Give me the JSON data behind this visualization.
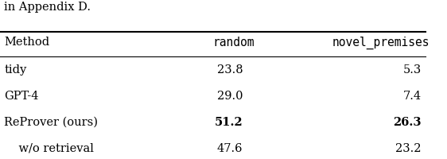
{
  "caption_text": "in Appendix D.",
  "col_headers": [
    "Method",
    "random",
    "novel_premises"
  ],
  "rows": [
    {
      "method": "tidy",
      "random": "23.8",
      "novel_premises": "5.3",
      "bold_random": false,
      "bold_novel": false,
      "indent": false
    },
    {
      "method": "GPT-4",
      "random": "29.0",
      "novel_premises": "7.4",
      "bold_random": false,
      "bold_novel": false,
      "indent": false
    },
    {
      "method": "ReProver (ours)",
      "random": "51.2",
      "novel_premises": "26.3",
      "bold_random": true,
      "bold_novel": true,
      "indent": false
    },
    {
      "method": "w/o retrieval",
      "random": "47.6",
      "novel_premises": "23.2",
      "bold_random": false,
      "bold_novel": false,
      "indent": true
    }
  ],
  "font_size": 10.5,
  "background_color": "#ffffff",
  "text_color": "#000000",
  "mono_font": "DejaVu Sans Mono",
  "serif_font": "DejaVu Serif"
}
